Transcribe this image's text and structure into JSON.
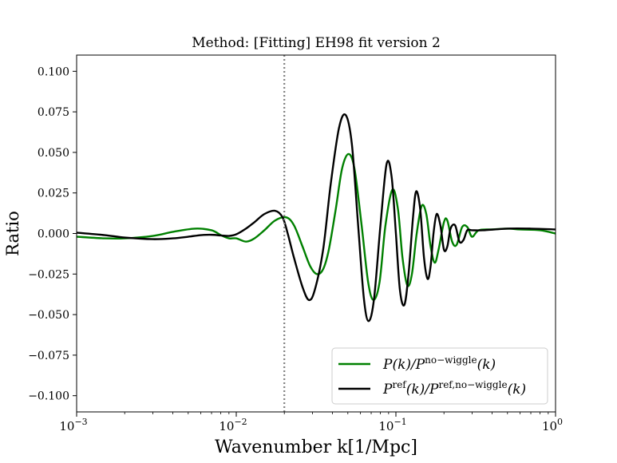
{
  "chart_data": {
    "type": "line",
    "title": "Method: [Fitting] EH98 fit version 2",
    "xlabel": "Wavenumber k[1/Mpc]",
    "ylabel": "Ratio",
    "xscale": "log",
    "xlim": [
      0.001,
      1.0
    ],
    "ylim": [
      -0.11,
      0.11
    ],
    "xticks": [
      {
        "value": 0.001,
        "base": "10",
        "exp": "−3"
      },
      {
        "value": 0.01,
        "base": "10",
        "exp": "−2"
      },
      {
        "value": 0.1,
        "base": "10",
        "exp": "−1"
      },
      {
        "value": 1.0,
        "base": "10",
        "exp": "0"
      }
    ],
    "yticks": [
      {
        "value": 0.1,
        "label": "0.100"
      },
      {
        "value": 0.075,
        "label": "0.075"
      },
      {
        "value": 0.05,
        "label": "0.050"
      },
      {
        "value": 0.025,
        "label": "0.025"
      },
      {
        "value": 0.0,
        "label": "0.000"
      },
      {
        "value": -0.025,
        "label": "−0.025"
      },
      {
        "value": -0.05,
        "label": "−0.050"
      },
      {
        "value": -0.075,
        "label": "−0.075"
      },
      {
        "value": -0.1,
        "label": "−0.100"
      }
    ],
    "vline": {
      "x": 0.02,
      "style": "dotted",
      "color": "#808080"
    },
    "legend": {
      "location": "lower-right"
    },
    "series": [
      {
        "name": "P(k)/P^{no−wiggle}(k)",
        "legend_main": "P(k)/P",
        "legend_sup": "no−wiggle",
        "legend_tail": "(k)",
        "color": "#008000",
        "points": [
          [
            0.001,
            -0.002
          ],
          [
            0.0015,
            -0.003
          ],
          [
            0.002,
            -0.003
          ],
          [
            0.003,
            -0.0015
          ],
          [
            0.004,
            0.001
          ],
          [
            0.0055,
            0.003
          ],
          [
            0.007,
            0.002
          ],
          [
            0.008,
            -0.001
          ],
          [
            0.009,
            -0.003
          ],
          [
            0.01,
            -0.003
          ],
          [
            0.0115,
            -0.005
          ],
          [
            0.013,
            -0.003
          ],
          [
            0.015,
            0.002
          ],
          [
            0.0175,
            0.008
          ],
          [
            0.0205,
            0.01
          ],
          [
            0.023,
            0.005
          ],
          [
            0.026,
            -0.008
          ],
          [
            0.029,
            -0.02
          ],
          [
            0.032,
            -0.025
          ],
          [
            0.035,
            -0.022
          ],
          [
            0.038,
            -0.01
          ],
          [
            0.042,
            0.015
          ],
          [
            0.046,
            0.04
          ],
          [
            0.0505,
            0.049
          ],
          [
            0.055,
            0.04
          ],
          [
            0.061,
            0.005
          ],
          [
            0.067,
            -0.03
          ],
          [
            0.0725,
            -0.041
          ],
          [
            0.079,
            -0.03
          ],
          [
            0.086,
            0.005
          ],
          [
            0.095,
            0.027
          ],
          [
            0.103,
            0.015
          ],
          [
            0.11,
            -0.015
          ],
          [
            0.118,
            -0.032
          ],
          [
            0.126,
            -0.025
          ],
          [
            0.135,
            0.0
          ],
          [
            0.145,
            0.017
          ],
          [
            0.155,
            0.012
          ],
          [
            0.165,
            -0.008
          ],
          [
            0.175,
            -0.018
          ],
          [
            0.185,
            -0.01
          ],
          [
            0.2,
            0.007
          ],
          [
            0.21,
            0.008
          ],
          [
            0.225,
            -0.005
          ],
          [
            0.24,
            -0.007
          ],
          [
            0.26,
            0.004
          ],
          [
            0.28,
            0.004
          ],
          [
            0.3,
            -0.002
          ],
          [
            0.33,
            0.002
          ],
          [
            0.4,
            0.0025
          ],
          [
            0.5,
            0.003
          ],
          [
            0.6,
            0.0025
          ],
          [
            0.8,
            0.002
          ],
          [
            1.0,
            0.0
          ]
        ]
      },
      {
        "name": "P^{ref}(k)/P^{ref,no−wiggle}(k)",
        "legend_main": "P",
        "legend_sup": "ref",
        "legend_mid": "(k)/P",
        "legend_sup2": "ref,no−wiggle",
        "legend_tail": "(k)",
        "color": "#000000",
        "points": [
          [
            0.001,
            0.0005
          ],
          [
            0.0015,
            -0.001
          ],
          [
            0.002,
            -0.0025
          ],
          [
            0.003,
            -0.0035
          ],
          [
            0.004,
            -0.003
          ],
          [
            0.005,
            -0.002
          ],
          [
            0.006,
            -0.001
          ],
          [
            0.007,
            -0.0008
          ],
          [
            0.008,
            -0.0012
          ],
          [
            0.009,
            -0.0015
          ],
          [
            0.01,
            -0.0005
          ],
          [
            0.0115,
            0.003
          ],
          [
            0.013,
            0.007
          ],
          [
            0.015,
            0.012
          ],
          [
            0.0175,
            0.014
          ],
          [
            0.0195,
            0.01
          ],
          [
            0.021,
            0.0
          ],
          [
            0.023,
            -0.015
          ],
          [
            0.026,
            -0.033
          ],
          [
            0.0285,
            -0.041
          ],
          [
            0.031,
            -0.035
          ],
          [
            0.035,
            -0.01
          ],
          [
            0.039,
            0.03
          ],
          [
            0.044,
            0.065
          ],
          [
            0.0485,
            0.073
          ],
          [
            0.053,
            0.055
          ],
          [
            0.058,
            0.005
          ],
          [
            0.063,
            -0.04
          ],
          [
            0.0675,
            -0.054
          ],
          [
            0.073,
            -0.04
          ],
          [
            0.08,
            0.005
          ],
          [
            0.0875,
            0.043
          ],
          [
            0.094,
            0.035
          ],
          [
            0.1,
            0.0
          ],
          [
            0.106,
            -0.035
          ],
          [
            0.113,
            -0.044
          ],
          [
            0.12,
            -0.025
          ],
          [
            0.128,
            0.01
          ],
          [
            0.134,
            0.026
          ],
          [
            0.142,
            0.015
          ],
          [
            0.15,
            -0.015
          ],
          [
            0.158,
            -0.028
          ],
          [
            0.165,
            -0.02
          ],
          [
            0.172,
            0.0
          ],
          [
            0.18,
            0.012
          ],
          [
            0.19,
            0.005
          ],
          [
            0.2,
            -0.01
          ],
          [
            0.21,
            -0.008
          ],
          [
            0.22,
            0.003
          ],
          [
            0.235,
            0.005
          ],
          [
            0.25,
            -0.005
          ],
          [
            0.265,
            -0.004
          ],
          [
            0.28,
            0.002
          ],
          [
            0.3,
            0.002
          ],
          [
            0.35,
            0.002
          ],
          [
            0.5,
            0.003
          ],
          [
            0.7,
            0.003
          ],
          [
            1.0,
            0.0025
          ]
        ]
      }
    ]
  }
}
